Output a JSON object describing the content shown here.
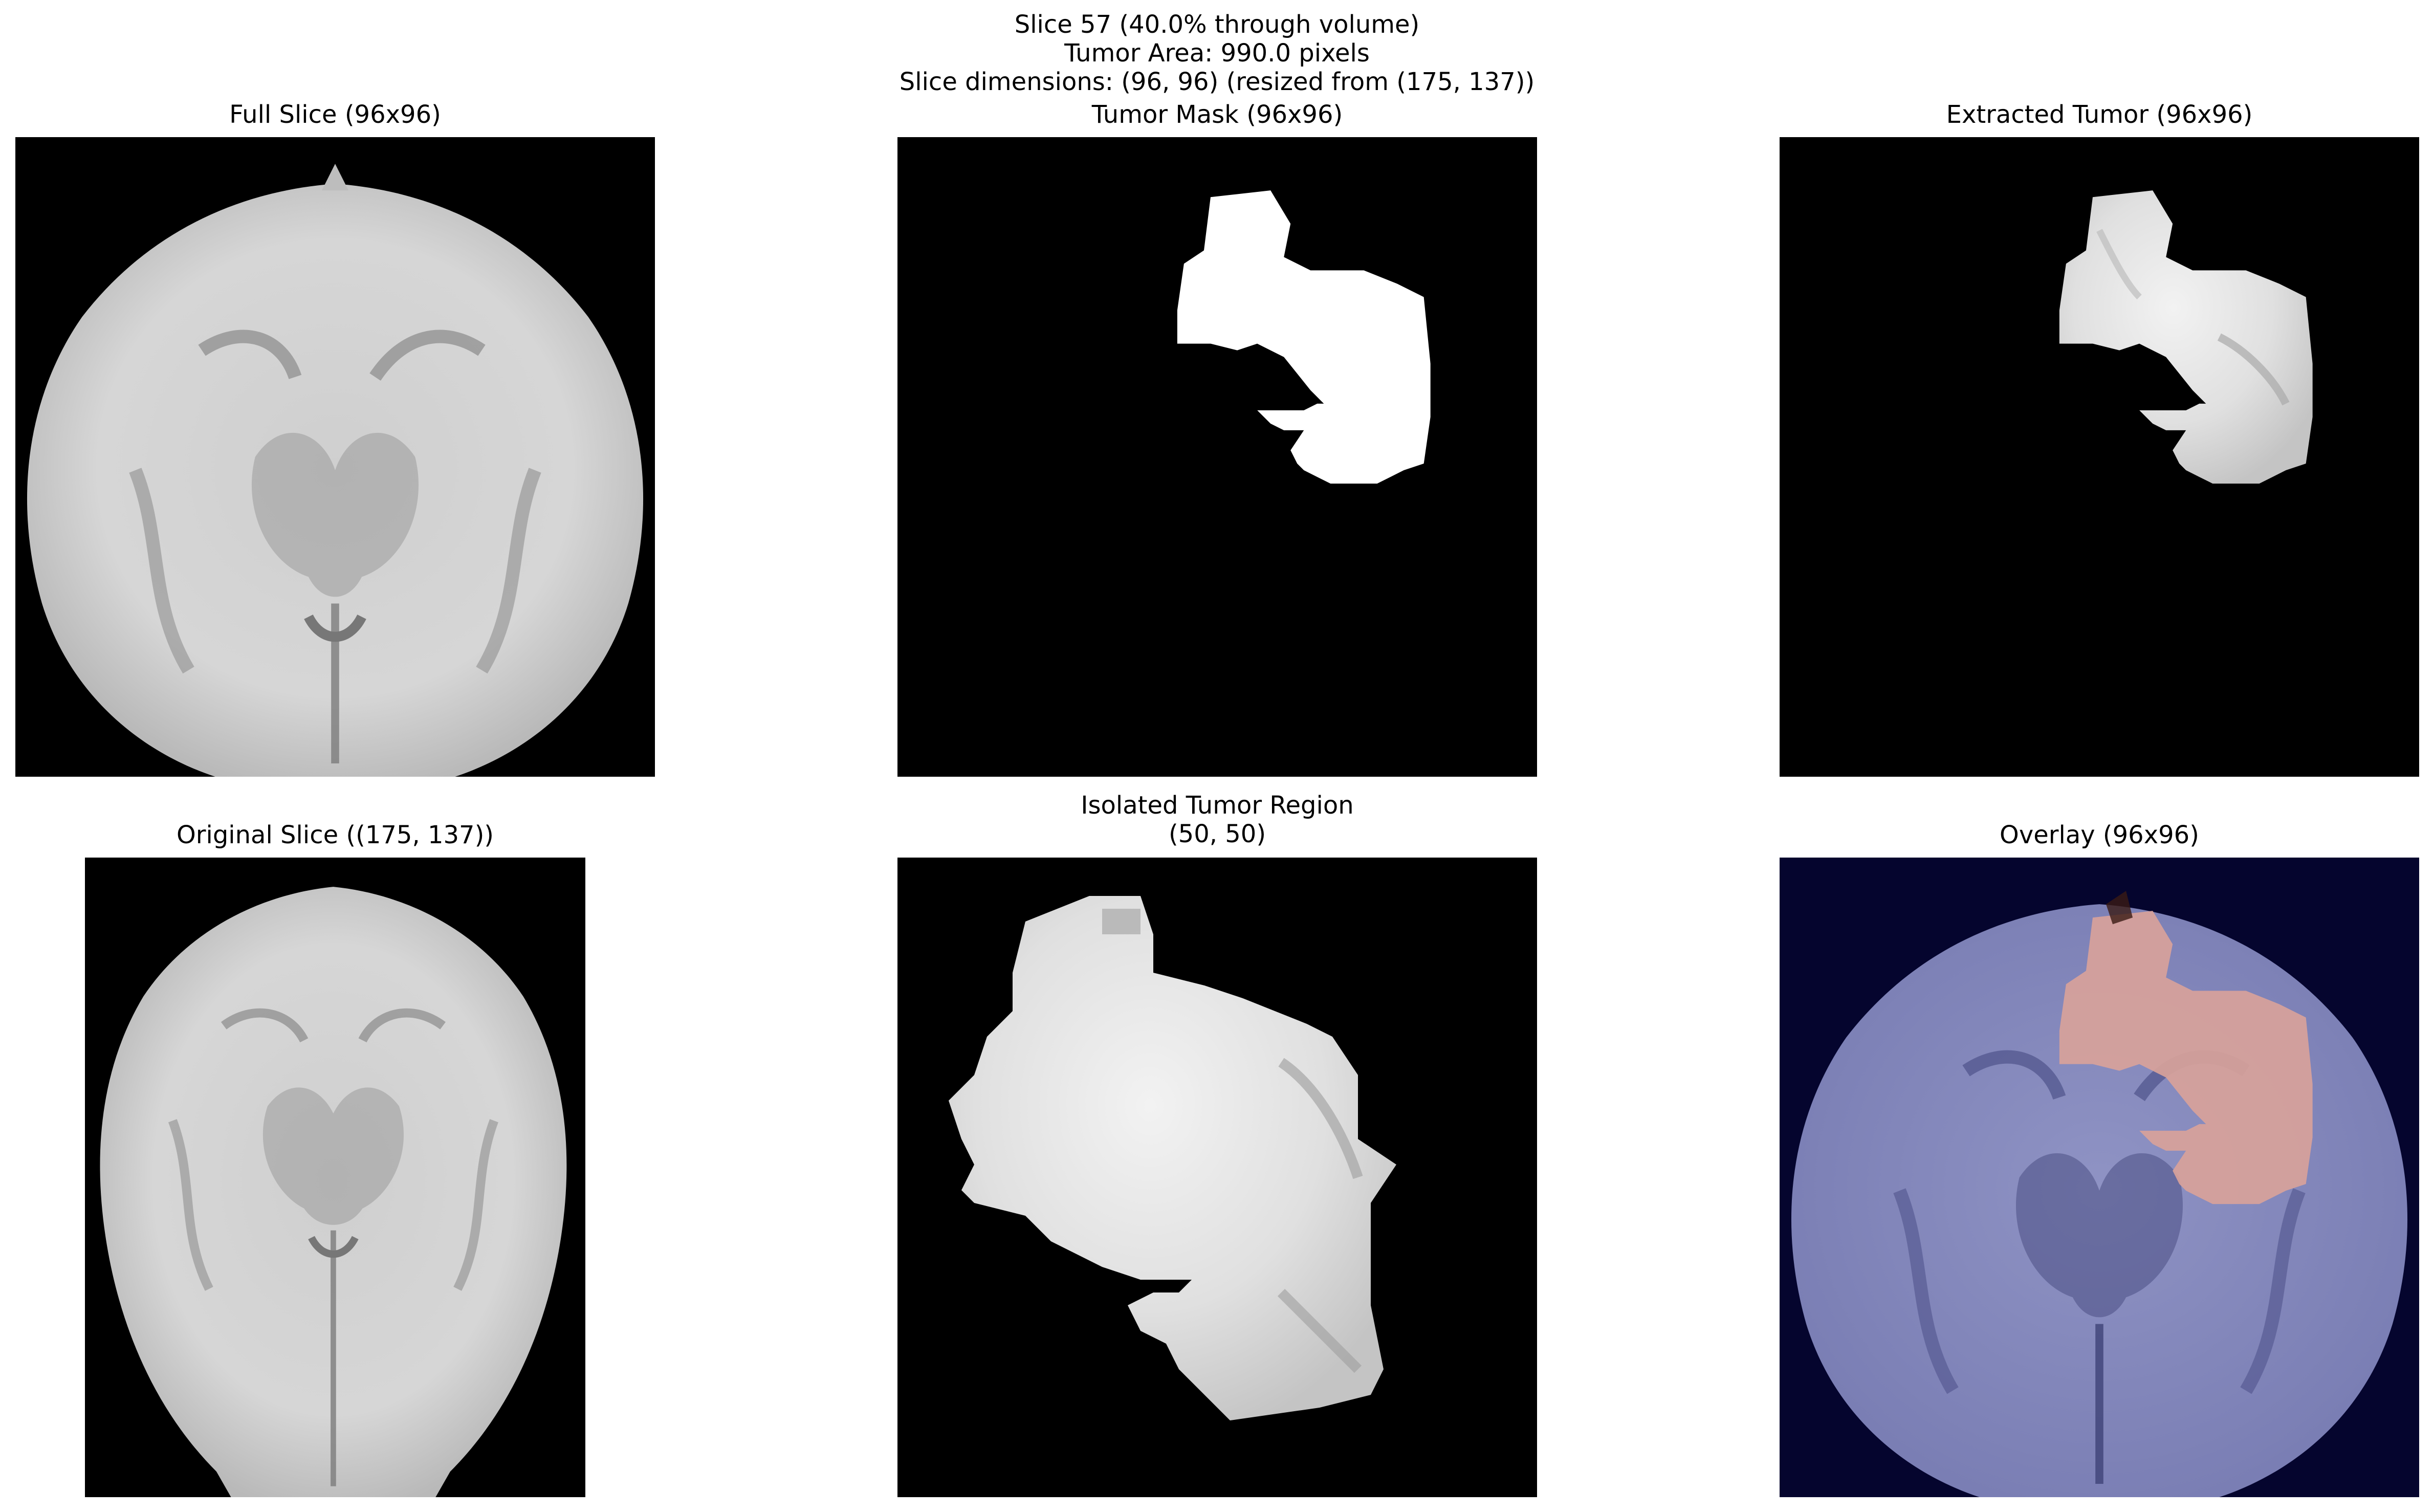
{
  "figure": {
    "suptitle_lines": [
      "Slice 57 (40.0% through volume)",
      "Tumor Area: 990.0 pixels",
      "Slice dimensions: (96, 96) (resized from (175, 137))"
    ]
  },
  "panels": {
    "full_slice": {
      "title": "Full Slice (96x96)"
    },
    "tumor_mask": {
      "title": "Tumor Mask (96x96)"
    },
    "extracted_tumor": {
      "title": "Extracted Tumor (96x96)"
    },
    "original_slice": {
      "title": "Original Slice ((175, 137))"
    },
    "isolated_region": {
      "title_line1": "Isolated Tumor Region",
      "title_line2": "(50, 50)"
    },
    "overlay": {
      "title": "Overlay (96x96)"
    }
  },
  "colors": {
    "background": "#000000",
    "brain_gray": "#c8c8c8",
    "mask_white": "#ffffff",
    "overlay_bg": "#05052e",
    "overlay_brain": "#8a8fc0",
    "overlay_tumor": "#d8a29a"
  }
}
